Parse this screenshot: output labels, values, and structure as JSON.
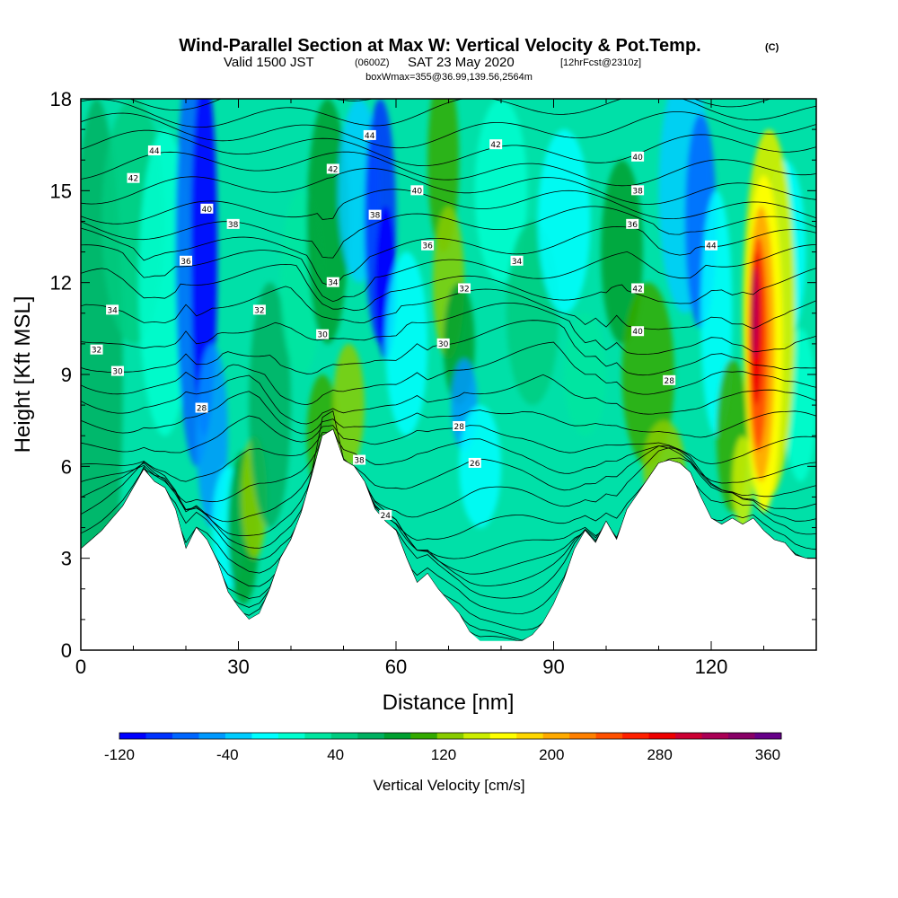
{
  "header": {
    "title": "Wind-Parallel Section at Max W: Vertical Velocity & Pot.Temp.",
    "copyright": "(C)",
    "valid_a": "Valid 1500 JST",
    "valid_b": "(0600Z)",
    "valid_c": "SAT 23 May 2020",
    "valid_d": "[12hrFcst@2310z]",
    "box_info": "boxWmax=355@36.99,139.56,2564m"
  },
  "chart_data": {
    "type": "heatmap",
    "xlabel": "Distance [nm]",
    "ylabel": "Height [Kft MSL]",
    "xlim": [
      0,
      140
    ],
    "ylim": [
      0,
      18
    ],
    "x_ticks": [
      "0",
      "30",
      "60",
      "90",
      "120"
    ],
    "y_ticks": [
      "0",
      "3",
      "6",
      "9",
      "12",
      "15",
      "18"
    ],
    "colorbar": {
      "label": "Vertical Velocity [cm/s]",
      "tick_labels": [
        "-120",
        "-40",
        "40",
        "120",
        "200",
        "280",
        "360"
      ],
      "colors": [
        "#0000ff",
        "#0033ff",
        "#0066ff",
        "#0099ff",
        "#00ccff",
        "#00ffff",
        "#00ffd0",
        "#00e6a0",
        "#00cc80",
        "#00b060",
        "#00a030",
        "#33aa00",
        "#88cc00",
        "#ccee00",
        "#ffff00",
        "#ffd700",
        "#ffaa00",
        "#ff8000",
        "#ff5000",
        "#ff2000",
        "#ee0000",
        "#cc0033",
        "#aa0055",
        "#880066",
        "#660088"
      ]
    },
    "terrain_kft": [
      [
        0,
        3.3
      ],
      [
        2,
        3.6
      ],
      [
        4,
        3.9
      ],
      [
        6,
        4.3
      ],
      [
        8,
        4.7
      ],
      [
        10,
        5.3
      ],
      [
        12,
        5.9
      ],
      [
        14,
        5.5
      ],
      [
        16,
        5.3
      ],
      [
        18,
        4.6
      ],
      [
        20,
        3.3
      ],
      [
        22,
        4.0
      ],
      [
        24,
        3.6
      ],
      [
        26,
        2.9
      ],
      [
        28,
        1.9
      ],
      [
        30,
        1.4
      ],
      [
        32,
        1.0
      ],
      [
        34,
        1.2
      ],
      [
        36,
        2.0
      ],
      [
        38,
        3.0
      ],
      [
        40,
        3.6
      ],
      [
        42,
        4.5
      ],
      [
        44,
        5.7
      ],
      [
        46,
        7.0
      ],
      [
        48,
        7.2
      ],
      [
        50,
        6.2
      ],
      [
        52,
        6.0
      ],
      [
        54,
        5.5
      ],
      [
        56,
        4.6
      ],
      [
        58,
        4.2
      ],
      [
        60,
        3.9
      ],
      [
        62,
        3.0
      ],
      [
        64,
        2.2
      ],
      [
        66,
        2.5
      ],
      [
        68,
        2.0
      ],
      [
        70,
        1.6
      ],
      [
        72,
        1.2
      ],
      [
        74,
        0.6
      ],
      [
        76,
        0.3
      ],
      [
        80,
        0.3
      ],
      [
        84,
        0.3
      ],
      [
        86,
        0.5
      ],
      [
        88,
        0.9
      ],
      [
        90,
        1.5
      ],
      [
        92,
        2.3
      ],
      [
        94,
        3.3
      ],
      [
        96,
        3.9
      ],
      [
        98,
        3.5
      ],
      [
        100,
        4.2
      ],
      [
        102,
        3.6
      ],
      [
        104,
        4.6
      ],
      [
        106,
        5.1
      ],
      [
        108,
        5.6
      ],
      [
        110,
        6.1
      ],
      [
        112,
        6.2
      ],
      [
        114,
        6.1
      ],
      [
        116,
        5.8
      ],
      [
        118,
        5.0
      ],
      [
        120,
        4.3
      ],
      [
        122,
        4.1
      ],
      [
        124,
        4.3
      ],
      [
        126,
        4.1
      ],
      [
        128,
        4.3
      ],
      [
        130,
        3.9
      ],
      [
        132,
        3.6
      ],
      [
        134,
        3.5
      ],
      [
        136,
        3.1
      ],
      [
        138,
        3.0
      ],
      [
        140,
        3.0
      ]
    ],
    "potential_temperature_labels": [
      "44",
      "42",
      "40",
      "38",
      "36",
      "34",
      "32",
      "30",
      "28",
      "24",
      "44",
      "42",
      "40",
      "38",
      "36",
      "34",
      "32",
      "30",
      "28",
      "26",
      "42",
      "40",
      "38",
      "36",
      "34",
      "32",
      "30",
      "28",
      "44",
      "42",
      "40",
      "38",
      "36",
      "34",
      "32",
      "30",
      "28"
    ],
    "vertical_velocity_features_cm_s": [
      {
        "x_nm": 24,
        "peak": -120,
        "note": "downdraft column"
      },
      {
        "x_nm": 57,
        "peak": -100,
        "note": "downdraft column"
      },
      {
        "x_nm": 72,
        "peak": 100,
        "note": "updraft column"
      },
      {
        "x_nm": 73,
        "peak": -60,
        "note": "downdraft"
      },
      {
        "x_nm": 118,
        "peak": -60,
        "note": "downdraft column"
      },
      {
        "x_nm": 129,
        "peak": 355,
        "note": "max updraft"
      }
    ]
  }
}
